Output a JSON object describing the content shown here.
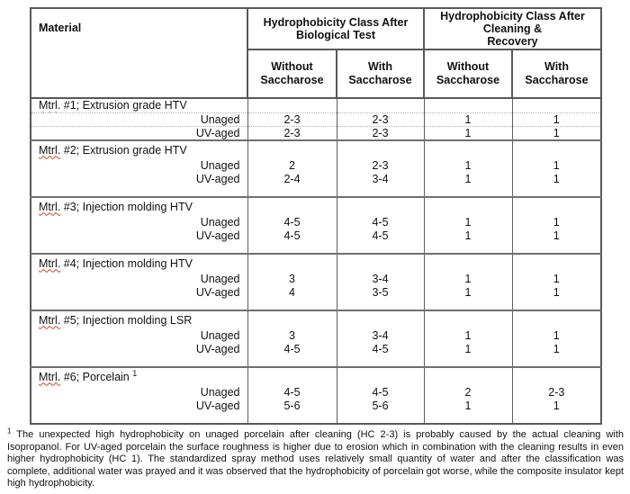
{
  "table": {
    "header": {
      "material_label": "Material",
      "groups": [
        {
          "line1": "Hydrophobicity Class After",
          "line2": "Biological Test",
          "line3": ""
        },
        {
          "line1": "Hydrophobicity Class After",
          "line2": "Cleaning &",
          "line3": "Recovery"
        }
      ],
      "subheaders": [
        "Without\nSaccharose",
        "With\nSaccharose",
        "Without\nSaccharose",
        "With\nSaccharose"
      ]
    },
    "row_labels": {
      "unaged": "Unaged",
      "uv_aged": "UV-aged"
    },
    "sections": [
      {
        "abbr": "Mtrl.",
        "name": " #1; Extrusion grade HTV",
        "sup": "",
        "compact": true,
        "rows": [
          {
            "label": "Unaged",
            "values": [
              "2-3",
              "2-3",
              "1",
              "1"
            ]
          },
          {
            "label": "UV-aged",
            "values": [
              "2-3",
              "2-3",
              "1",
              "1"
            ]
          }
        ]
      },
      {
        "abbr": "Mtrl.",
        "name": " #2; Extrusion grade HTV",
        "sup": "",
        "compact": false,
        "rows": [
          {
            "label": "Unaged",
            "values": [
              "2",
              "2-3",
              "1",
              "1"
            ]
          },
          {
            "label": "UV-aged",
            "values": [
              "2-4",
              "3-4",
              "1",
              "1"
            ]
          }
        ]
      },
      {
        "abbr": "Mtrl.",
        "name": " #3; Injection molding HTV",
        "sup": "",
        "compact": false,
        "rows": [
          {
            "label": "Unaged",
            "values": [
              "4-5",
              "4-5",
              "1",
              "1"
            ]
          },
          {
            "label": "UV-aged",
            "values": [
              "4-5",
              "4-5",
              "1",
              "1"
            ]
          }
        ]
      },
      {
        "abbr": "Mtrl.",
        "name": " #4; Injection molding HTV",
        "sup": "",
        "compact": false,
        "rows": [
          {
            "label": "Unaged",
            "values": [
              "3",
              "3-4",
              "1",
              "1"
            ]
          },
          {
            "label": "UV-aged",
            "values": [
              "4",
              "3-5",
              "1",
              "1"
            ]
          }
        ]
      },
      {
        "abbr": "Mtrl.",
        "name": " #5; Injection molding LSR",
        "sup": "",
        "compact": false,
        "rows": [
          {
            "label": "Unaged",
            "values": [
              "3",
              "3-4",
              "1",
              "1"
            ]
          },
          {
            "label": "UV-aged",
            "values": [
              "4-5",
              "4-5",
              "1",
              "1"
            ]
          }
        ]
      },
      {
        "abbr": "Mtrl.",
        "name": " #6; Porcelain",
        "sup": "1",
        "compact": false,
        "rows": [
          {
            "label": "Unaged",
            "values": [
              "4-5",
              "4-5",
              "2",
              "2-3"
            ]
          },
          {
            "label": "UV-aged",
            "values": [
              "5-6",
              "5-6",
              "1",
              "1"
            ]
          }
        ]
      }
    ]
  },
  "footnote": {
    "marker": "1",
    "text": " The unexpected high hydrophobicity on unaged porcelain after cleaning (HC 2-3) is probably caused by the actual cleaning with Isopropanol. For UV-aged porcelain the surface roughness is higher due to erosion which in combination with the cleaning results in even higher hydrophobicity (HC 1). The standardized spray method uses relatively small quantity of water and after the classification was complete, additional water was prayed and it was observed that the hydrophobicity of porcelain got worse, while the composite insulator kept high hydrophobicity."
  },
  "colors": {
    "border_dark": "#58585a",
    "border_body": "#5f5f5f",
    "section_divider": "#6f6f6f",
    "dotted_line": "#b3b3b3",
    "spellcheck_red": "#d43d30",
    "text": "#111111",
    "background": "#ffffff"
  }
}
